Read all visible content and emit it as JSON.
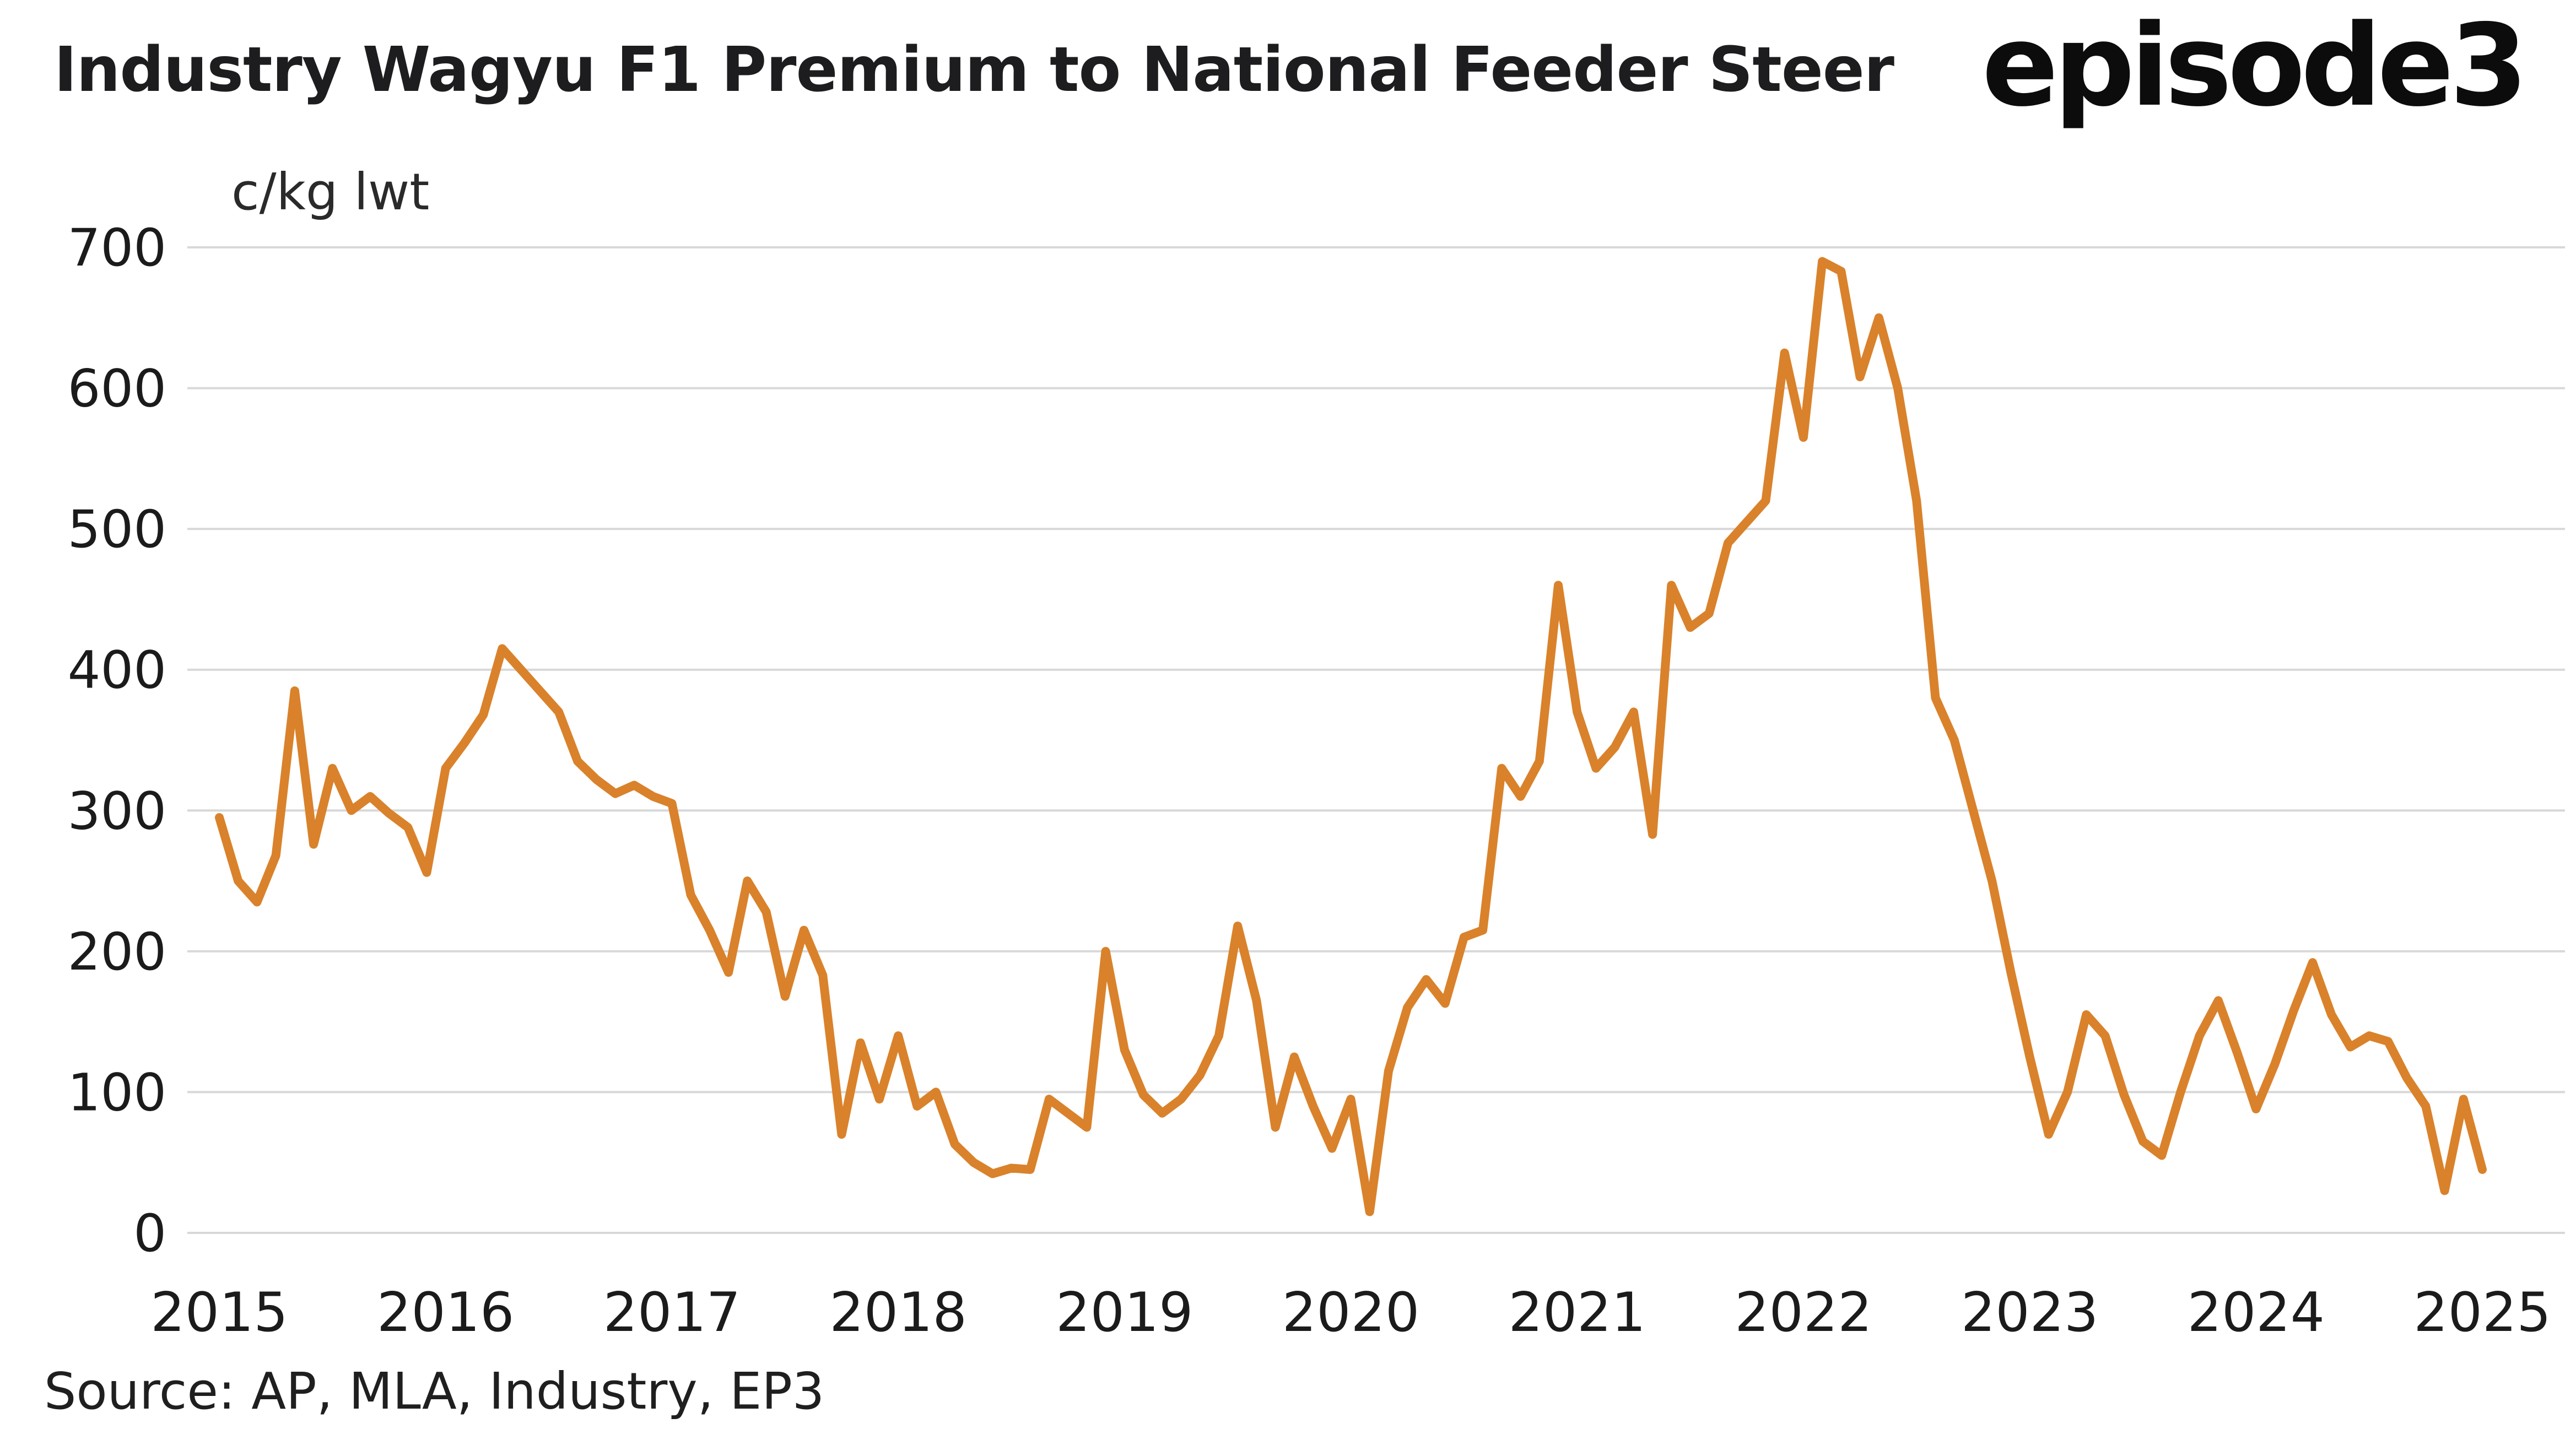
{
  "header": {
    "title": "Industry Wagyu F1 Premium to National Feeder Steer",
    "logo": "episode3"
  },
  "axis": {
    "units": "c/kg lwt"
  },
  "footer": {
    "source": "Source: AP, MLA, Industry, EP3"
  },
  "chart_data": {
    "type": "line",
    "title": "Industry Wagyu F1 Premium to National Feeder Steer",
    "ylabel": "c/kg lwt",
    "xlabel": "",
    "source": "Source: AP, MLA, Industry, EP3",
    "legend": "none",
    "grid": "horizontal-only",
    "line_color": "#D9822B",
    "grid_color": "#d8d8d8",
    "text_color": "#1b1b1b",
    "background_color": "#ffffff",
    "ylim": [
      0,
      700
    ],
    "yticks": [
      0,
      100,
      200,
      300,
      400,
      500,
      600,
      700
    ],
    "xticks": [
      2015,
      2016,
      2017,
      2018,
      2019,
      2020,
      2021,
      2022,
      2023,
      2024,
      2025
    ],
    "x_start_year": 2015,
    "frequency": "monthly",
    "series_name": "Wagyu F1 premium to national feeder steer (c/kg lwt)",
    "values": [
      295,
      250,
      235,
      268,
      385,
      276,
      330,
      300,
      310,
      298,
      288,
      256,
      330,
      348,
      368,
      415,
      400,
      385,
      370,
      335,
      322,
      312,
      318,
      310,
      305,
      240,
      215,
      185,
      250,
      228,
      168,
      215,
      183,
      70,
      135,
      95,
      140,
      90,
      100,
      63,
      50,
      42,
      46,
      45,
      95,
      85,
      75,
      200,
      130,
      98,
      85,
      95,
      112,
      140,
      218,
      165,
      75,
      125,
      90,
      60,
      95,
      15,
      115,
      160,
      180,
      163,
      210,
      215,
      330,
      310,
      335,
      460,
      370,
      330,
      345,
      370,
      283,
      460,
      430,
      440,
      490,
      505,
      520,
      625,
      565,
      690,
      683,
      608,
      650,
      600,
      520,
      380,
      350,
      300,
      250,
      185,
      125,
      70,
      100,
      155,
      140,
      98,
      65,
      55,
      100,
      140,
      165,
      128,
      88,
      120,
      158,
      192,
      155,
      132,
      140,
      136,
      110,
      90,
      30,
      95,
      45
    ]
  }
}
